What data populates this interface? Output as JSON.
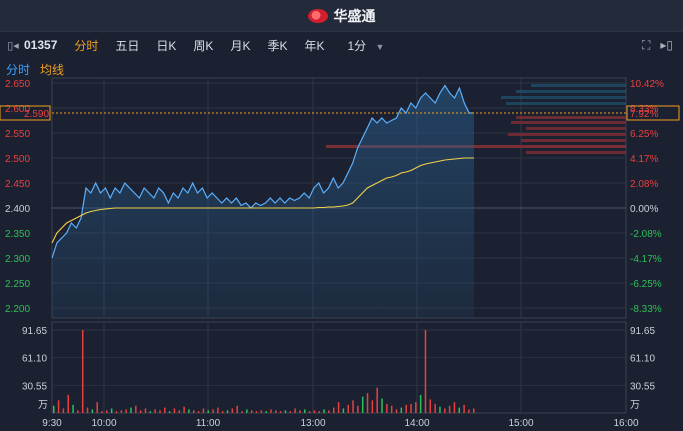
{
  "brand": {
    "name": "华盛通"
  },
  "toolbar": {
    "stock_code": "01357",
    "tabs": [
      {
        "label": "分时",
        "active": true
      },
      {
        "label": "五日"
      },
      {
        "label": "日K"
      },
      {
        "label": "周K"
      },
      {
        "label": "月K"
      },
      {
        "label": "季K"
      },
      {
        "label": "年K"
      },
      {
        "label": "1分"
      }
    ]
  },
  "legend": {
    "line": "分时",
    "avg": "均线"
  },
  "chart_data": [
    {
      "type": "line",
      "y_left_ticks": [
        "2.650",
        "2.600",
        "2.550",
        "2.500",
        "2.450",
        "2.400",
        "2.350",
        "2.300",
        "2.250",
        "2.200"
      ],
      "y_right_ticks": [
        "10.42%",
        "8.33%",
        "6.25%",
        "4.17%",
        "2.08%",
        "0.00%",
        "-2.08%",
        "-4.17%",
        "-6.25%",
        "-8.33%"
      ],
      "ylim": [
        2.18,
        2.66
      ],
      "prev_close": 2.4,
      "current_price": "2.590",
      "current_pct": "7.92%",
      "x_ticks": [
        "9:30",
        "10:00",
        "11:00",
        "13:00",
        "14:00",
        "15:00",
        "16:00"
      ],
      "series": [
        {
          "name": "分时",
          "color": "#5ab0ff",
          "values": [
            2.3,
            2.33,
            2.34,
            2.35,
            2.37,
            2.36,
            2.38,
            2.44,
            2.43,
            2.45,
            2.43,
            2.44,
            2.42,
            2.44,
            2.43,
            2.45,
            2.44,
            2.43,
            2.42,
            2.44,
            2.43,
            2.42,
            2.44,
            2.43,
            2.41,
            2.43,
            2.42,
            2.44,
            2.43,
            2.45,
            2.43,
            2.44,
            2.42,
            2.43,
            2.42,
            2.41,
            2.42,
            2.41,
            2.42,
            2.405,
            2.41,
            2.4,
            2.41,
            2.405,
            2.41,
            2.42,
            2.41,
            2.42,
            2.41,
            2.42,
            2.415,
            2.42,
            2.43,
            2.42,
            2.44,
            2.45,
            2.43,
            2.44,
            2.46,
            2.44,
            2.45,
            2.47,
            2.49,
            2.52,
            2.54,
            2.56,
            2.58,
            2.57,
            2.58,
            2.57,
            2.575,
            2.58,
            2.6,
            2.59,
            2.61,
            2.6,
            2.62,
            2.63,
            2.62,
            2.61,
            2.63,
            2.645,
            2.63,
            2.62,
            2.64,
            2.61,
            2.59,
            2.59
          ]
        },
        {
          "name": "均线",
          "color": "#f2d24a",
          "values": [
            2.33,
            2.35,
            2.36,
            2.37,
            2.375,
            2.38,
            2.385,
            2.39,
            2.393,
            2.395,
            2.397,
            2.398,
            2.399,
            2.4,
            2.4,
            2.4,
            2.4,
            2.4,
            2.4,
            2.4,
            2.4,
            2.4,
            2.4,
            2.4,
            2.4,
            2.4,
            2.4,
            2.4,
            2.4,
            2.4,
            2.4,
            2.4,
            2.4,
            2.4,
            2.4,
            2.4,
            2.4,
            2.4,
            2.4,
            2.4,
            2.4,
            2.4,
            2.4,
            2.4,
            2.4,
            2.4,
            2.4,
            2.4,
            2.4,
            2.4,
            2.4,
            2.4,
            2.4,
            2.4,
            2.4,
            2.401,
            2.401,
            2.402,
            2.402,
            2.403,
            2.404,
            2.406,
            2.41,
            2.42,
            2.43,
            2.44,
            2.445,
            2.45,
            2.455,
            2.46,
            2.462,
            2.465,
            2.47,
            2.472,
            2.475,
            2.48,
            2.485,
            2.488,
            2.49,
            2.492,
            2.494,
            2.496,
            2.497,
            2.498,
            2.499,
            2.5,
            2.5,
            2.5
          ]
        }
      ]
    },
    {
      "type": "bar",
      "unit": "万",
      "y_ticks": [
        "91.65",
        "61.10",
        "30.55"
      ],
      "ylim": [
        0,
        91.65
      ],
      "values": [
        8,
        14,
        5,
        20,
        9,
        3,
        91.65,
        6,
        4,
        12,
        2,
        3,
        5,
        2,
        3,
        4,
        6,
        8,
        3,
        5,
        2,
        4,
        3,
        6,
        2,
        5,
        3,
        7,
        4,
        3,
        2,
        5,
        3,
        4,
        6,
        2,
        3,
        5,
        8,
        2,
        4,
        3,
        2,
        3,
        2,
        4,
        3,
        2,
        3,
        2,
        5,
        3,
        4,
        2,
        3,
        2,
        4,
        3,
        6,
        12,
        5,
        9,
        14,
        8,
        18,
        22,
        14,
        28,
        16,
        10,
        8,
        4,
        6,
        9,
        10,
        12,
        20,
        91.65,
        15,
        10,
        7,
        5,
        8,
        12,
        6,
        9,
        4,
        5
      ]
    }
  ]
}
